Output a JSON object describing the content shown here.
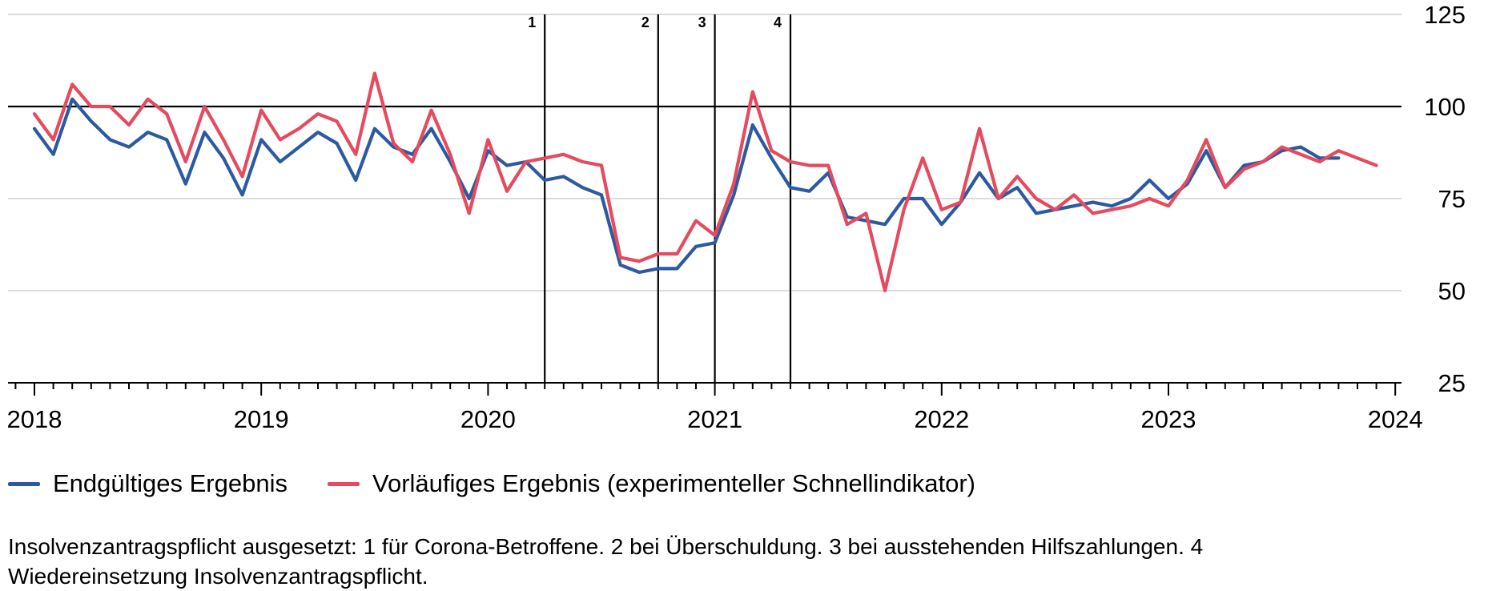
{
  "chart_data": {
    "type": "line",
    "title": "",
    "xlabel": "",
    "ylabel": "",
    "ylim": [
      25,
      125
    ],
    "yticks": [
      25,
      50,
      75,
      100,
      125
    ],
    "xticks": [
      "2018",
      "2019",
      "2020",
      "2021",
      "2022",
      "2023",
      "2024"
    ],
    "x_range": [
      "2018-01",
      "2024-01"
    ],
    "reference_line": 100,
    "grid": "horizontal",
    "legend_position": "bottom-left",
    "markers": [
      {
        "label": "1",
        "x": "2020-04"
      },
      {
        "label": "2",
        "x": "2020-10"
      },
      {
        "label": "3",
        "x": "2021-01"
      },
      {
        "label": "4",
        "x": "2021-05"
      }
    ],
    "series": [
      {
        "name": "Endgültiges Ergebnis",
        "color": "#2c5aa0",
        "start": "2018-01",
        "values": [
          94,
          87,
          102,
          96,
          91,
          89,
          93,
          91,
          79,
          93,
          86,
          76,
          91,
          85,
          89,
          93,
          90,
          80,
          94,
          89,
          87,
          94,
          85,
          75,
          88,
          84,
          85,
          80,
          81,
          78,
          76,
          57,
          55,
          56,
          56,
          62,
          63,
          76,
          95,
          86,
          78,
          77,
          82,
          70,
          69,
          68,
          75,
          75,
          68,
          74,
          82,
          75,
          78,
          71,
          72,
          73,
          74,
          73,
          75,
          80,
          75,
          79,
          88,
          78,
          84,
          85,
          88,
          89,
          86,
          86
        ]
      },
      {
        "name": "Vorläufiges Ergebnis (experimenteller Schnellindikator)",
        "color": "#e54a5e",
        "start": "2018-01",
        "values": [
          98,
          91,
          106,
          100,
          100,
          95,
          102,
          98,
          85,
          100,
          91,
          81,
          99,
          91,
          94,
          98,
          96,
          87,
          109,
          90,
          85,
          99,
          87,
          71,
          91,
          77,
          85,
          86,
          87,
          85,
          84,
          59,
          58,
          60,
          60,
          69,
          65,
          79,
          104,
          88,
          85,
          84,
          84,
          68,
          71,
          50,
          72,
          86,
          72,
          74,
          94,
          75,
          81,
          75,
          72,
          76,
          71,
          72,
          73,
          75,
          73,
          80,
          91,
          78,
          83,
          85,
          89,
          87,
          85,
          88,
          86,
          84
        ]
      }
    ]
  },
  "legend": {
    "items": [
      {
        "label": "Endgültiges Ergebnis",
        "color": "#2c5aa0"
      },
      {
        "label": "Vorläufiges Ergebnis (experimenteller Schnellindikator)",
        "color": "#e54a5e"
      }
    ]
  },
  "footnote": "Insolvenzantragspflicht ausgesetzt: 1 für Corona-Betroffene. 2 bei Überschuldung. 3 bei ausstehenden Hilfszahlungen. 4 Wiedereinsetzung Insolvenzantragspflicht."
}
